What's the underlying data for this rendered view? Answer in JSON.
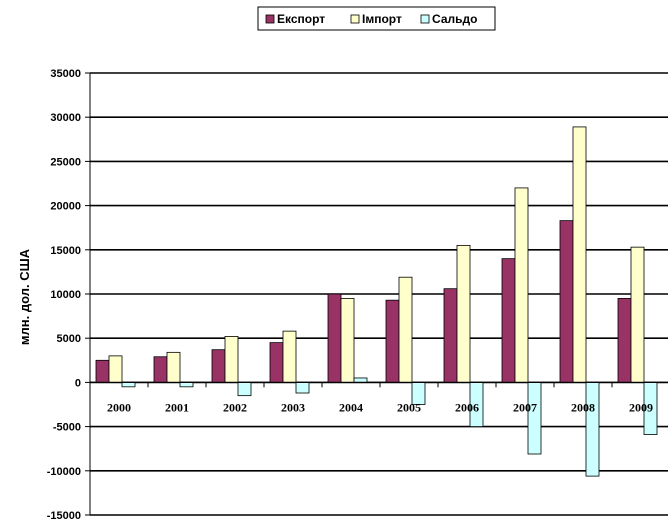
{
  "colors": {
    "export": "#993366",
    "import": "#ffffcc",
    "saldo": "#ccffff",
    "outline": "#000000",
    "grid": "#000000"
  },
  "chart_data": {
    "type": "bar",
    "title": "",
    "xlabel": "",
    "ylabel": "млн. дол. США",
    "ylim": [
      -15000,
      35000
    ],
    "yticks": [
      -15000,
      -10000,
      -5000,
      0,
      5000,
      10000,
      15000,
      20000,
      25000,
      30000,
      35000
    ],
    "grid": true,
    "legend_position": "top-center",
    "categories": [
      "2000",
      "2001",
      "2002",
      "2003",
      "2004",
      "2005",
      "2006",
      "2007",
      "2008",
      "2009"
    ],
    "series": [
      {
        "name": "Експорт",
        "values": [
          2500,
          2900,
          3700,
          4500,
          10000,
          9300,
          10600,
          14000,
          18300,
          9500
        ]
      },
      {
        "name": "Імпорт",
        "values": [
          3000,
          3400,
          5200,
          5800,
          9500,
          11900,
          15500,
          22000,
          28900,
          15300
        ]
      },
      {
        "name": "Сальдо",
        "values": [
          -500,
          -500,
          -1500,
          -1200,
          500,
          -2500,
          -5000,
          -8100,
          -10600,
          -5900
        ]
      }
    ]
  }
}
